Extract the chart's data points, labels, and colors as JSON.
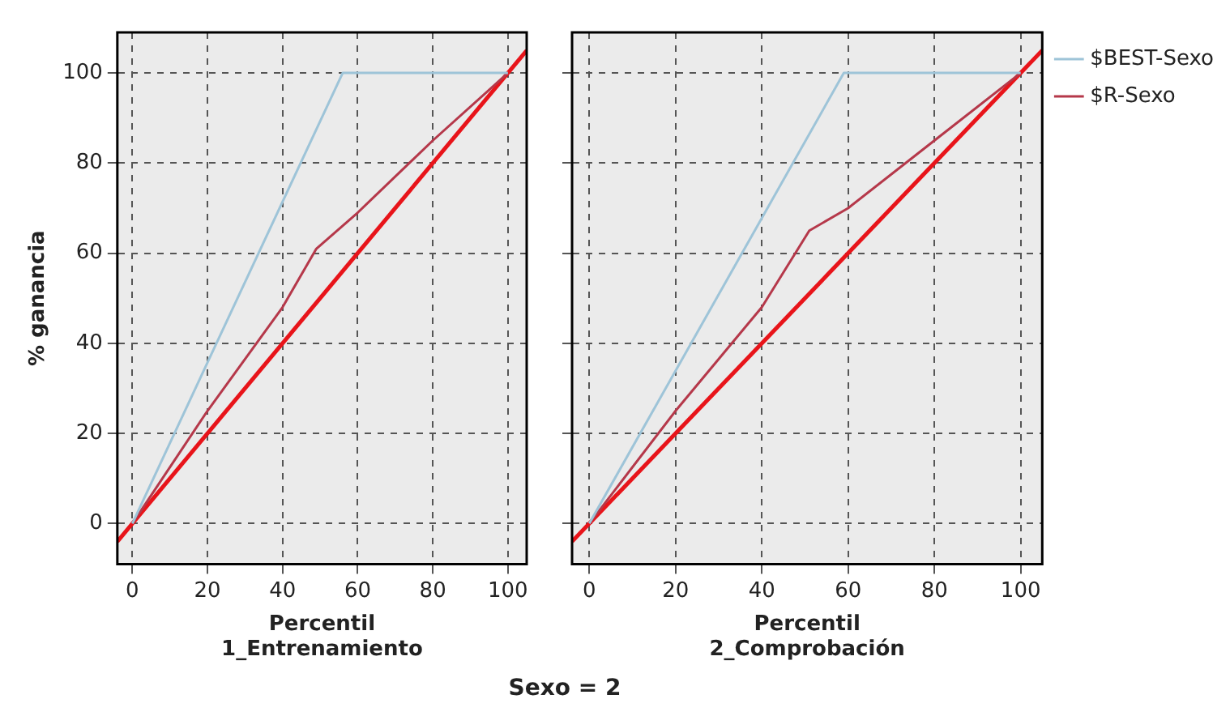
{
  "chart_data": [
    {
      "type": "line",
      "xlabel": "Percentil\n1_Entrenamiento",
      "ylabel": "% ganancia",
      "xlim": [
        -4,
        105
      ],
      "ylim": [
        -9,
        109
      ],
      "xticks": [
        0,
        20,
        40,
        60,
        80,
        100
      ],
      "yticks": [
        0,
        20,
        40,
        60,
        80,
        100
      ],
      "grid": true,
      "legend": false,
      "marker": "none",
      "line_style": "solid",
      "annotations": [
        "Sexo = 2"
      ],
      "series": [
        {
          "color": "#9ec4d8",
          "x": [
            0,
            56,
            100
          ],
          "values": [
            0,
            100,
            100
          ]
        },
        {
          "color": "#b5384a",
          "x": [
            0,
            20,
            40,
            49,
            60,
            80,
            100
          ],
          "values": [
            0,
            25,
            48,
            61,
            69,
            85,
            100
          ]
        },
        {
          "color": "#e8141a",
          "x": [
            -4,
            105
          ],
          "values": [
            -4,
            105
          ]
        }
      ]
    },
    {
      "type": "line",
      "xlabel": "Percentil\n2_Comprobación",
      "xlim": [
        -4,
        105
      ],
      "ylim": [
        -9,
        109
      ],
      "xticks": [
        0,
        20,
        40,
        60,
        80,
        100
      ],
      "yticks": [
        0,
        20,
        40,
        60,
        80,
        100
      ],
      "grid": true,
      "legend": "top right",
      "tick_labels": "x",
      "marker": "none",
      "line_style": "solid",
      "series": [
        {
          "name": "$BEST-Sexo",
          "color": "#9ec4d8",
          "x": [
            0,
            59,
            100
          ],
          "values": [
            0,
            100,
            100
          ]
        },
        {
          "name": "$R-Sexo",
          "color": "#b5384a",
          "x": [
            0,
            20,
            40,
            51,
            60,
            80,
            100
          ],
          "values": [
            0,
            25,
            48,
            65,
            70,
            85,
            100
          ]
        },
        {
          "color": "#e8141a",
          "x": [
            -4,
            105
          ],
          "values": [
            -4,
            105
          ]
        }
      ]
    }
  ]
}
